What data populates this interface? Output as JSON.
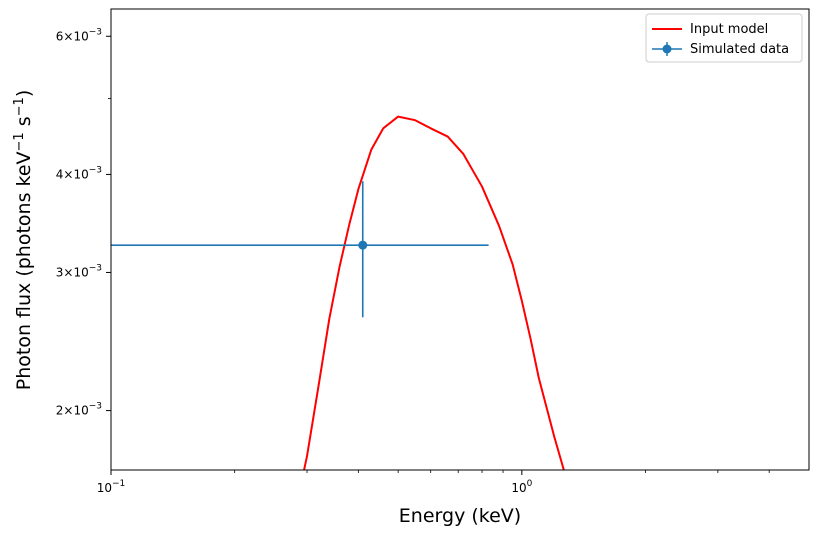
{
  "chart_data": {
    "type": "line",
    "title": "",
    "xlabel": "Energy (keV)",
    "ylabel": "Photon flux (photons keV",
    "ylabel_sup1": "−1",
    "ylabel_mid": " s",
    "ylabel_sup2": "−1",
    "ylabel_end": ")",
    "xscale": "log",
    "yscale": "log",
    "xlim": [
      0.1,
      5.0
    ],
    "ylim": [
      0.00168,
      0.0065
    ],
    "x_ticks": [
      {
        "value": 0.1,
        "mant": "10",
        "exp": "−1"
      },
      {
        "value": 1.0,
        "mant": "10",
        "exp": "0"
      }
    ],
    "y_ticks": [
      {
        "value": 0.002,
        "mant": "2×10",
        "exp": "−3"
      },
      {
        "value": 0.003,
        "mant": "3×10",
        "exp": "−3"
      },
      {
        "value": 0.004,
        "mant": "4×10",
        "exp": "−3"
      },
      {
        "value": 0.006,
        "mant": "6×10",
        "exp": "−3"
      }
    ],
    "y_minor_ticks": [
      0.005
    ],
    "legend_position": "upper right",
    "series": [
      {
        "name": "Input model",
        "kind": "line",
        "color": "#ff0000",
        "x": [
          0.29,
          0.3,
          0.32,
          0.34,
          0.36,
          0.38,
          0.4,
          0.43,
          0.46,
          0.5,
          0.55,
          0.6,
          0.66,
          0.72,
          0.8,
          0.88,
          0.95,
          1.0,
          1.05,
          1.1,
          1.2,
          1.3
        ],
        "y": [
          0.00161,
          0.00175,
          0.00215,
          0.00262,
          0.00305,
          0.00345,
          0.00383,
          0.0043,
          0.00458,
          0.00474,
          0.00469,
          0.00458,
          0.00447,
          0.00425,
          0.00386,
          0.00344,
          0.00307,
          0.00276,
          0.00247,
          0.0022,
          0.00185,
          0.0016
        ]
      },
      {
        "name": "Simulated data",
        "kind": "errorbar",
        "color": "#1f77b4",
        "x": [
          0.41
        ],
        "y": [
          0.00325
        ],
        "xerr_low": [
          0.1
        ],
        "xerr_high": [
          0.83
        ],
        "yerr_low": [
          0.00263
        ],
        "yerr_high": [
          0.00392
        ]
      }
    ]
  }
}
